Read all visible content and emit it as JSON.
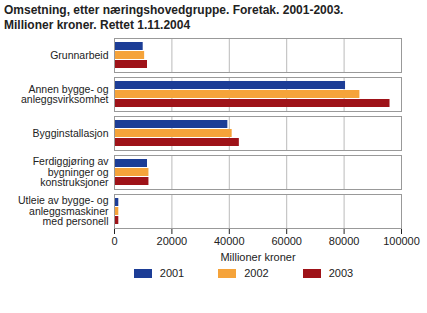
{
  "chart_data": {
    "type": "bar",
    "orientation": "horizontal",
    "title": "Omsetning, etter næringshovedgruppe. Foretak. 2001-2003. Millioner kroner. Rettet 1.11.2004",
    "categories": [
      "Grunnarbeid",
      "Annen bygge- og anleggsvirksomhet",
      "Bygginstallasjon",
      "Ferdiggjøring av bygninger og konstruksjoner",
      "Utleie av bygge- og anleggsmaskiner med personell"
    ],
    "series": [
      {
        "name": "2001",
        "color": "#1c3d96",
        "values": [
          10000,
          80500,
          39500,
          11500,
          1500
        ]
      },
      {
        "name": "2002",
        "color": "#f5a33a",
        "values": [
          10500,
          85500,
          41000,
          12000,
          1500
        ]
      },
      {
        "name": "2003",
        "color": "#9e1218",
        "values": [
          11500,
          96000,
          43500,
          12000,
          1500
        ]
      }
    ],
    "xlim": [
      0,
      100000
    ],
    "xticks": [
      0,
      20000,
      40000,
      60000,
      80000,
      100000
    ],
    "xlabel": "Millioner kroner",
    "grid": true,
    "legend": "bottom"
  }
}
